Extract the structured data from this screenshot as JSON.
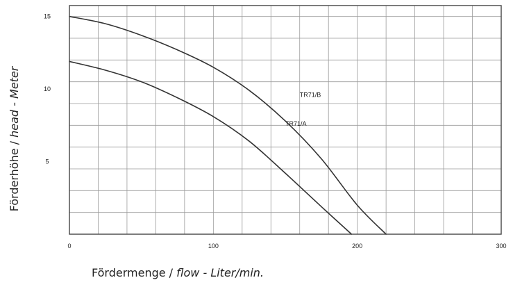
{
  "chart_data": {
    "type": "line",
    "xlabel": {
      "main": "Fördermenge / ",
      "italic": "flow - Liter/min."
    },
    "ylabel": {
      "main": "Förderhöhe / ",
      "italic": "head - Meter"
    },
    "xlim": [
      0,
      300
    ],
    "ylim": [
      0,
      15.75
    ],
    "x_ticks": [
      {
        "value": 0,
        "label": "0"
      },
      {
        "value": 100,
        "label": "100"
      },
      {
        "value": 200,
        "label": "200"
      },
      {
        "value": 300,
        "label": "300"
      }
    ],
    "y_ticks": [
      {
        "value": 5,
        "label": "5"
      },
      {
        "value": 10,
        "label": "10"
      },
      {
        "value": 15,
        "label": "15"
      }
    ],
    "grid": true,
    "grid_x_step": 20,
    "grid_y_step": 1.5,
    "legend": "none",
    "series": [
      {
        "name": "TR71/B",
        "color": "#333333",
        "x": [
          0,
          25,
          50,
          75,
          100,
          125,
          150,
          175,
          200,
          220
        ],
        "y": [
          15.0,
          14.5,
          13.7,
          12.7,
          11.5,
          9.9,
          7.8,
          5.2,
          2.0,
          0
        ]
      },
      {
        "name": "TR71/A",
        "color": "#333333",
        "x": [
          0,
          25,
          50,
          75,
          100,
          125,
          150,
          175,
          196
        ],
        "y": [
          11.9,
          11.3,
          10.5,
          9.4,
          8.1,
          6.4,
          4.2,
          1.9,
          0
        ]
      }
    ],
    "annotations": [
      {
        "text": "TR71/B",
        "series": "TR71/B"
      },
      {
        "text": "TR71/A",
        "series": "TR71/A"
      }
    ]
  },
  "colors": {
    "grid": "#9a9a9a",
    "frame": "#444444",
    "curve": "#333333"
  }
}
